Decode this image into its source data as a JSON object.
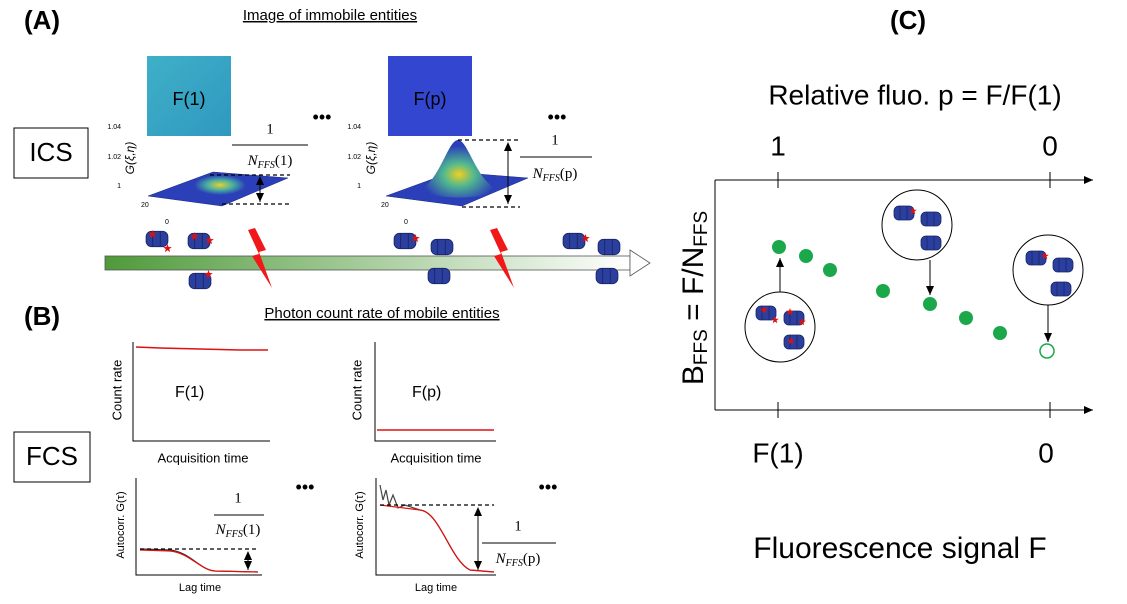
{
  "panel_a": {
    "label": "(A)",
    "title": "Image of immobile entities",
    "method": "ICS",
    "images": [
      {
        "label": "F(1)"
      },
      {
        "label": "F(p)"
      }
    ],
    "fraction_numerator": "1",
    "n_labels": [
      {
        "base": "N",
        "sub": "FFS",
        "arg": "(1)"
      },
      {
        "base": "N",
        "sub": "FFS",
        "arg": "(p)"
      }
    ],
    "ellipsis": "•••",
    "z_axis_label": "G(ξ,η)",
    "z_ticks": [
      "1.04",
      "1.02",
      "1"
    ],
    "xy_ticks": [
      "20",
      "0"
    ]
  },
  "panel_b": {
    "label": "(B)",
    "title": "Photon count rate of mobile entities",
    "method": "FCS",
    "count_ylabel": "Count rate",
    "count_xlabel": "Acquisition time",
    "traces": [
      "F(1)",
      "F(p)"
    ],
    "acf_ylabel": "Autocorr. G(τ)",
    "acf_xlabel": "Lag time"
  },
  "panel_c": {
    "label": "(C)",
    "top_axis_title": "Relative fluo. p = F/F(1)",
    "top_ticks": [
      "1",
      "0"
    ],
    "bottom_ticks": [
      "F(1)",
      "0"
    ],
    "bottom_axis_title": "Fluorescence signal F",
    "y_label": {
      "b": "B",
      "b_sub": "FFS",
      "eq": " = F/N",
      "n_sub": "FFS"
    }
  }
}
